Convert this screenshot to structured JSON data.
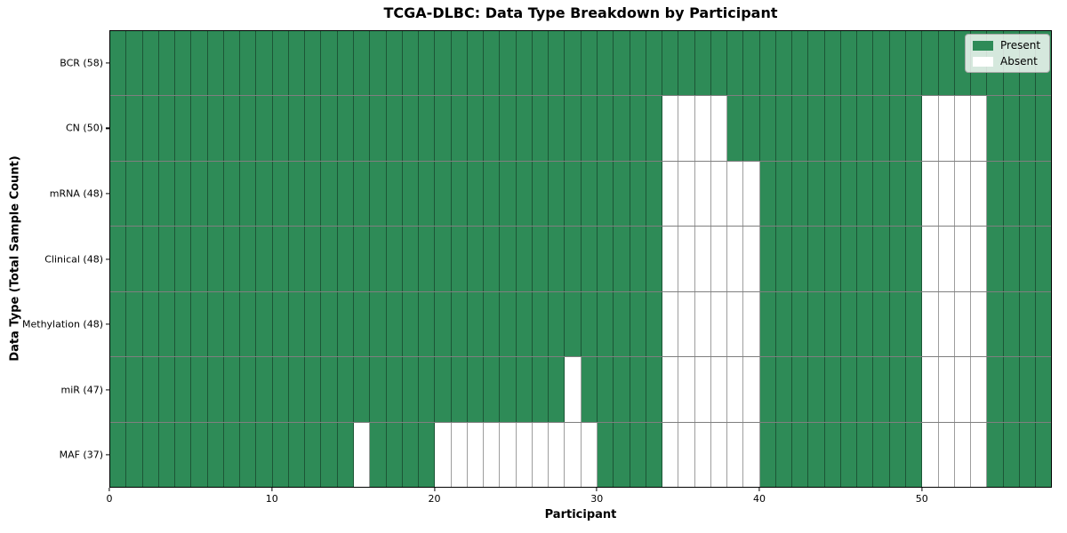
{
  "chart_data": {
    "type": "heatmap",
    "title": "TCGA-DLBC: Data Type Breakdown by Participant",
    "xlabel": "Participant",
    "ylabel": "Data Type (Total Sample Count)",
    "x_ticks": [
      0,
      10,
      20,
      30,
      40,
      50
    ],
    "xlim": [
      0,
      58
    ],
    "n_participants": 58,
    "legend_position": "upper right",
    "cell_states": [
      "Present",
      "Absent"
    ],
    "legend": [
      {
        "label": "Present",
        "color": "#2e8b57"
      },
      {
        "label": "Absent",
        "color": "#ffffff"
      }
    ],
    "rows": [
      {
        "label": "BCR (58)",
        "data_type": "BCR",
        "present_count": 58,
        "absent_participants": []
      },
      {
        "label": "CN (50)",
        "data_type": "CN",
        "present_count": 50,
        "absent_participants": [
          34,
          35,
          36,
          37,
          50,
          51,
          52,
          53
        ]
      },
      {
        "label": "mRNA (48)",
        "data_type": "mRNA",
        "present_count": 48,
        "absent_participants": [
          34,
          35,
          36,
          37,
          38,
          39,
          50,
          51,
          52,
          53
        ]
      },
      {
        "label": "Clinical (48)",
        "data_type": "Clinical",
        "present_count": 48,
        "absent_participants": [
          34,
          35,
          36,
          37,
          38,
          39,
          50,
          51,
          52,
          53
        ]
      },
      {
        "label": "Methylation (48)",
        "data_type": "Methylation",
        "present_count": 48,
        "absent_participants": [
          34,
          35,
          36,
          37,
          38,
          39,
          50,
          51,
          52,
          53
        ]
      },
      {
        "label": "miR (47)",
        "data_type": "miR",
        "present_count": 47,
        "absent_participants": [
          28,
          34,
          35,
          36,
          37,
          38,
          39,
          50,
          51,
          52,
          53
        ]
      },
      {
        "label": "MAF (37)",
        "data_type": "MAF",
        "present_count": 37,
        "absent_participants": [
          15,
          20,
          21,
          22,
          23,
          24,
          25,
          26,
          27,
          28,
          29,
          34,
          35,
          36,
          37,
          38,
          39,
          50,
          51,
          52,
          53
        ]
      }
    ],
    "colors": {
      "present": "#2e8b57",
      "absent": "#ffffff",
      "cell_edge": "rgba(0,0,0,0.38)",
      "frame": "#000000"
    }
  }
}
